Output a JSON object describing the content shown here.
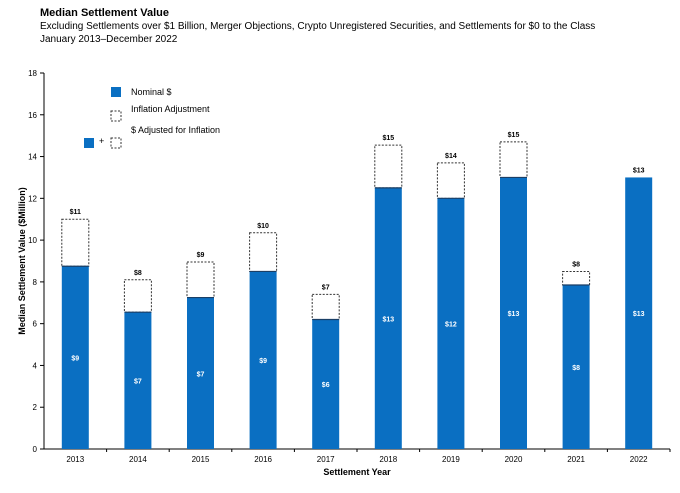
{
  "header": {
    "title": "Median Settlement Value",
    "subtitle": "Excluding Settlements over $1 Billion, Merger Objections, Crypto Unregistered Securities, and Settlements for $0 to the Class",
    "date_range": "January 2013–December 2022"
  },
  "colors": {
    "nominal": "#0a6fc2",
    "adjustment_border": "#333333",
    "axis": "#000000",
    "label_inside": "#ffffff",
    "label_top": "#000000"
  },
  "legend": {
    "nominal_label": "Nominal $",
    "adjustment_label": "Inflation Adjustment",
    "adjusted_label": "$ Adjusted for Inflation",
    "plus_symbol": "+"
  },
  "chart_data": {
    "type": "bar",
    "stacked": true,
    "title": "Median Settlement Value",
    "xlabel": "Settlement Year",
    "ylabel": "Median Settlement Value ($Million)",
    "ylim": [
      0,
      18
    ],
    "yticks": [
      0,
      2,
      4,
      6,
      8,
      10,
      12,
      14,
      16,
      18
    ],
    "grid": false,
    "legend_position": "top-left",
    "categories": [
      "2013",
      "2014",
      "2015",
      "2016",
      "2017",
      "2018",
      "2019",
      "2020",
      "2021",
      "2022"
    ],
    "series": [
      {
        "name": "Nominal $",
        "values": [
          8.75,
          6.55,
          7.25,
          8.5,
          6.2,
          12.5,
          12.0,
          13.0,
          7.85,
          13.0
        ],
        "labels": [
          "$9",
          "$7",
          "$7",
          "$9",
          "$6",
          "$13",
          "$12",
          "$13",
          "$8",
          "$13"
        ]
      },
      {
        "name": "Inflation Adjustment",
        "values": [
          2.25,
          1.55,
          1.7,
          1.85,
          1.2,
          2.05,
          1.7,
          1.7,
          0.65,
          0.0
        ]
      }
    ],
    "adjusted_labels": [
      "$11",
      "$8",
      "$9",
      "$10",
      "$7",
      "$15",
      "$14",
      "$15",
      "$8",
      "$13"
    ]
  }
}
